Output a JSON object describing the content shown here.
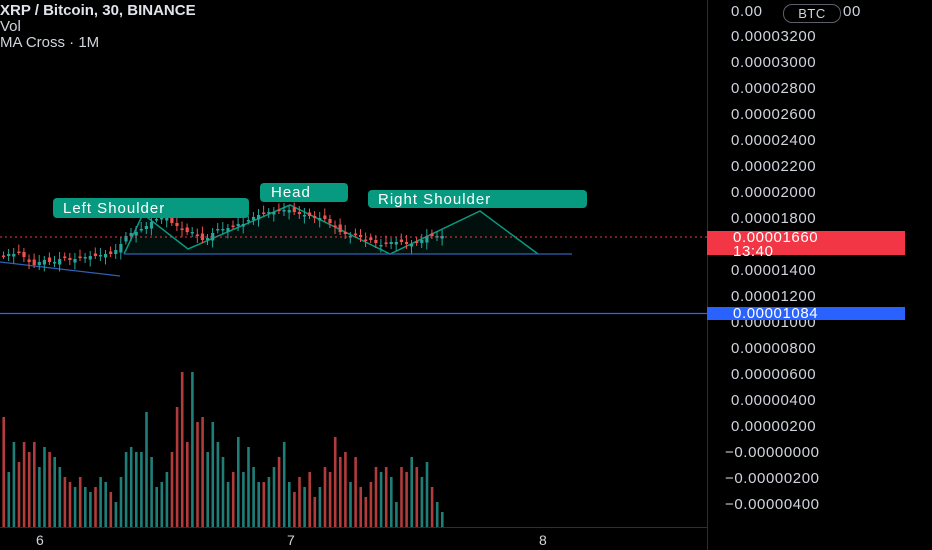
{
  "legend": {
    "title": "XRP / Bitcoin, 30, BINANCE",
    "vol": "Vol",
    "ma": "MA Cross · 1M"
  },
  "currency_badge": "BTC",
  "price_axis": {
    "labels": [
      "0.00003200",
      "0.00003000",
      "0.00002800",
      "0.00002600",
      "0.00002400",
      "0.00002200",
      "0.00002000",
      "0.00001800",
      "0.00001400",
      "0.00001200",
      "0.00001000",
      "0.00000800",
      "0.00000600",
      "0.00000400",
      "0.00000200",
      "−0.00000000",
      "−0.00000200",
      "−0.00000400"
    ],
    "top_partial": [
      "0.00",
      "00"
    ]
  },
  "time_axis": {
    "labels": [
      "6",
      "7",
      "8"
    ]
  },
  "last_price": {
    "value": "0.00001660",
    "countdown": "13:40"
  },
  "horizontal_line": {
    "value": "0.00001084"
  },
  "annotations": {
    "left_shoulder": "Left Shoulder",
    "head": "Head",
    "right_shoulder": "Right Shoulder"
  },
  "colors": {
    "bull": "#26a69a",
    "bear": "#ef5350",
    "annotation": "#089981",
    "hline": "#2962ff",
    "last_price": "#f23645"
  }
}
